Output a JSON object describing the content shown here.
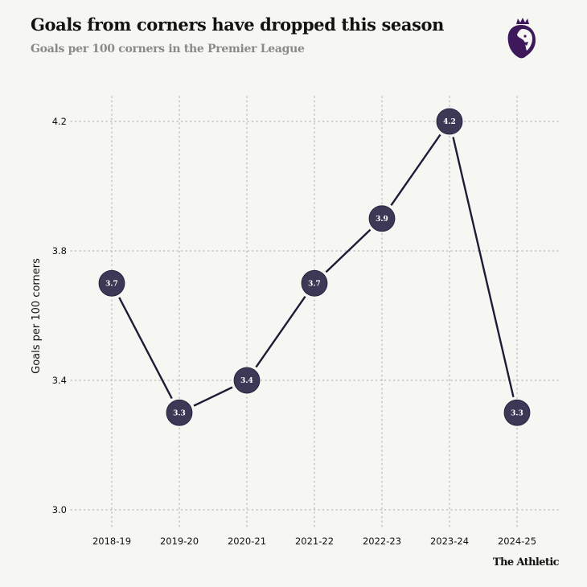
{
  "header": {
    "title": "Goals from corners have dropped this season",
    "subtitle": "Goals per 100 corners in the Premier League",
    "logo": "premier-league-lion-icon"
  },
  "footer": {
    "brand": "The Athletic"
  },
  "colors": {
    "background": "#f6f6f3",
    "line": "#1f1b36",
    "marker": "#3c3856",
    "grid": "#b5b5b5",
    "logo": "#3d195b"
  },
  "chart_data": {
    "type": "line",
    "title": "Goals from corners have dropped this season",
    "subtitle": "Goals per 100 corners in the Premier League",
    "xlabel": "",
    "ylabel": "Goals per 100 corners",
    "categories": [
      "2018-19",
      "2019-20",
      "2020-21",
      "2021-22",
      "2022-23",
      "2023-24",
      "2024-25"
    ],
    "series": [
      {
        "name": "Goals per 100 corners",
        "values": [
          3.7,
          3.3,
          3.4,
          3.7,
          3.9,
          4.2,
          3.3
        ]
      }
    ],
    "data_labels": [
      "3.7",
      "3.3",
      "3.4",
      "3.7",
      "3.9",
      "4.2",
      "3.3"
    ],
    "ylim": [
      3.0,
      4.2
    ],
    "yticks": [
      3.0,
      3.4,
      3.8,
      4.2
    ],
    "ytick_labels": [
      "3.0",
      "3.4",
      "3.8",
      "4.2"
    ],
    "grid": true,
    "legend": "none"
  }
}
